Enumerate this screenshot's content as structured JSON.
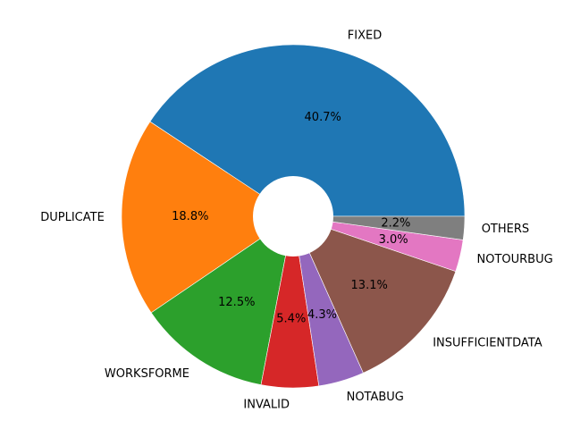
{
  "chart_data": {
    "type": "pie",
    "donut": true,
    "start_angle_deg": 0,
    "direction": "counterclockwise",
    "slices": [
      {
        "label": "FIXED",
        "value": 40.7,
        "pct_label": "40.7%",
        "color": "#1f77b4"
      },
      {
        "label": "DUPLICATE",
        "value": 18.8,
        "pct_label": "18.8%",
        "color": "#ff7f0e"
      },
      {
        "label": "WORKSFORME",
        "value": 12.5,
        "pct_label": "12.5%",
        "color": "#2ca02c"
      },
      {
        "label": "INVALID",
        "value": 5.4,
        "pct_label": "5.4%",
        "color": "#d62728"
      },
      {
        "label": "NOTABUG",
        "value": 4.3,
        "pct_label": "4.3%",
        "color": "#9467bd"
      },
      {
        "label": "INSUFFICIENTDATA",
        "value": 13.1,
        "pct_label": "13.1%",
        "color": "#8c564b"
      },
      {
        "label": "NOTOURBUG",
        "value": 3.0,
        "pct_label": "3.0%",
        "color": "#e377c2"
      },
      {
        "label": "OTHERS",
        "value": 2.2,
        "pct_label": "2.2%",
        "color": "#7f7f7f"
      }
    ]
  }
}
